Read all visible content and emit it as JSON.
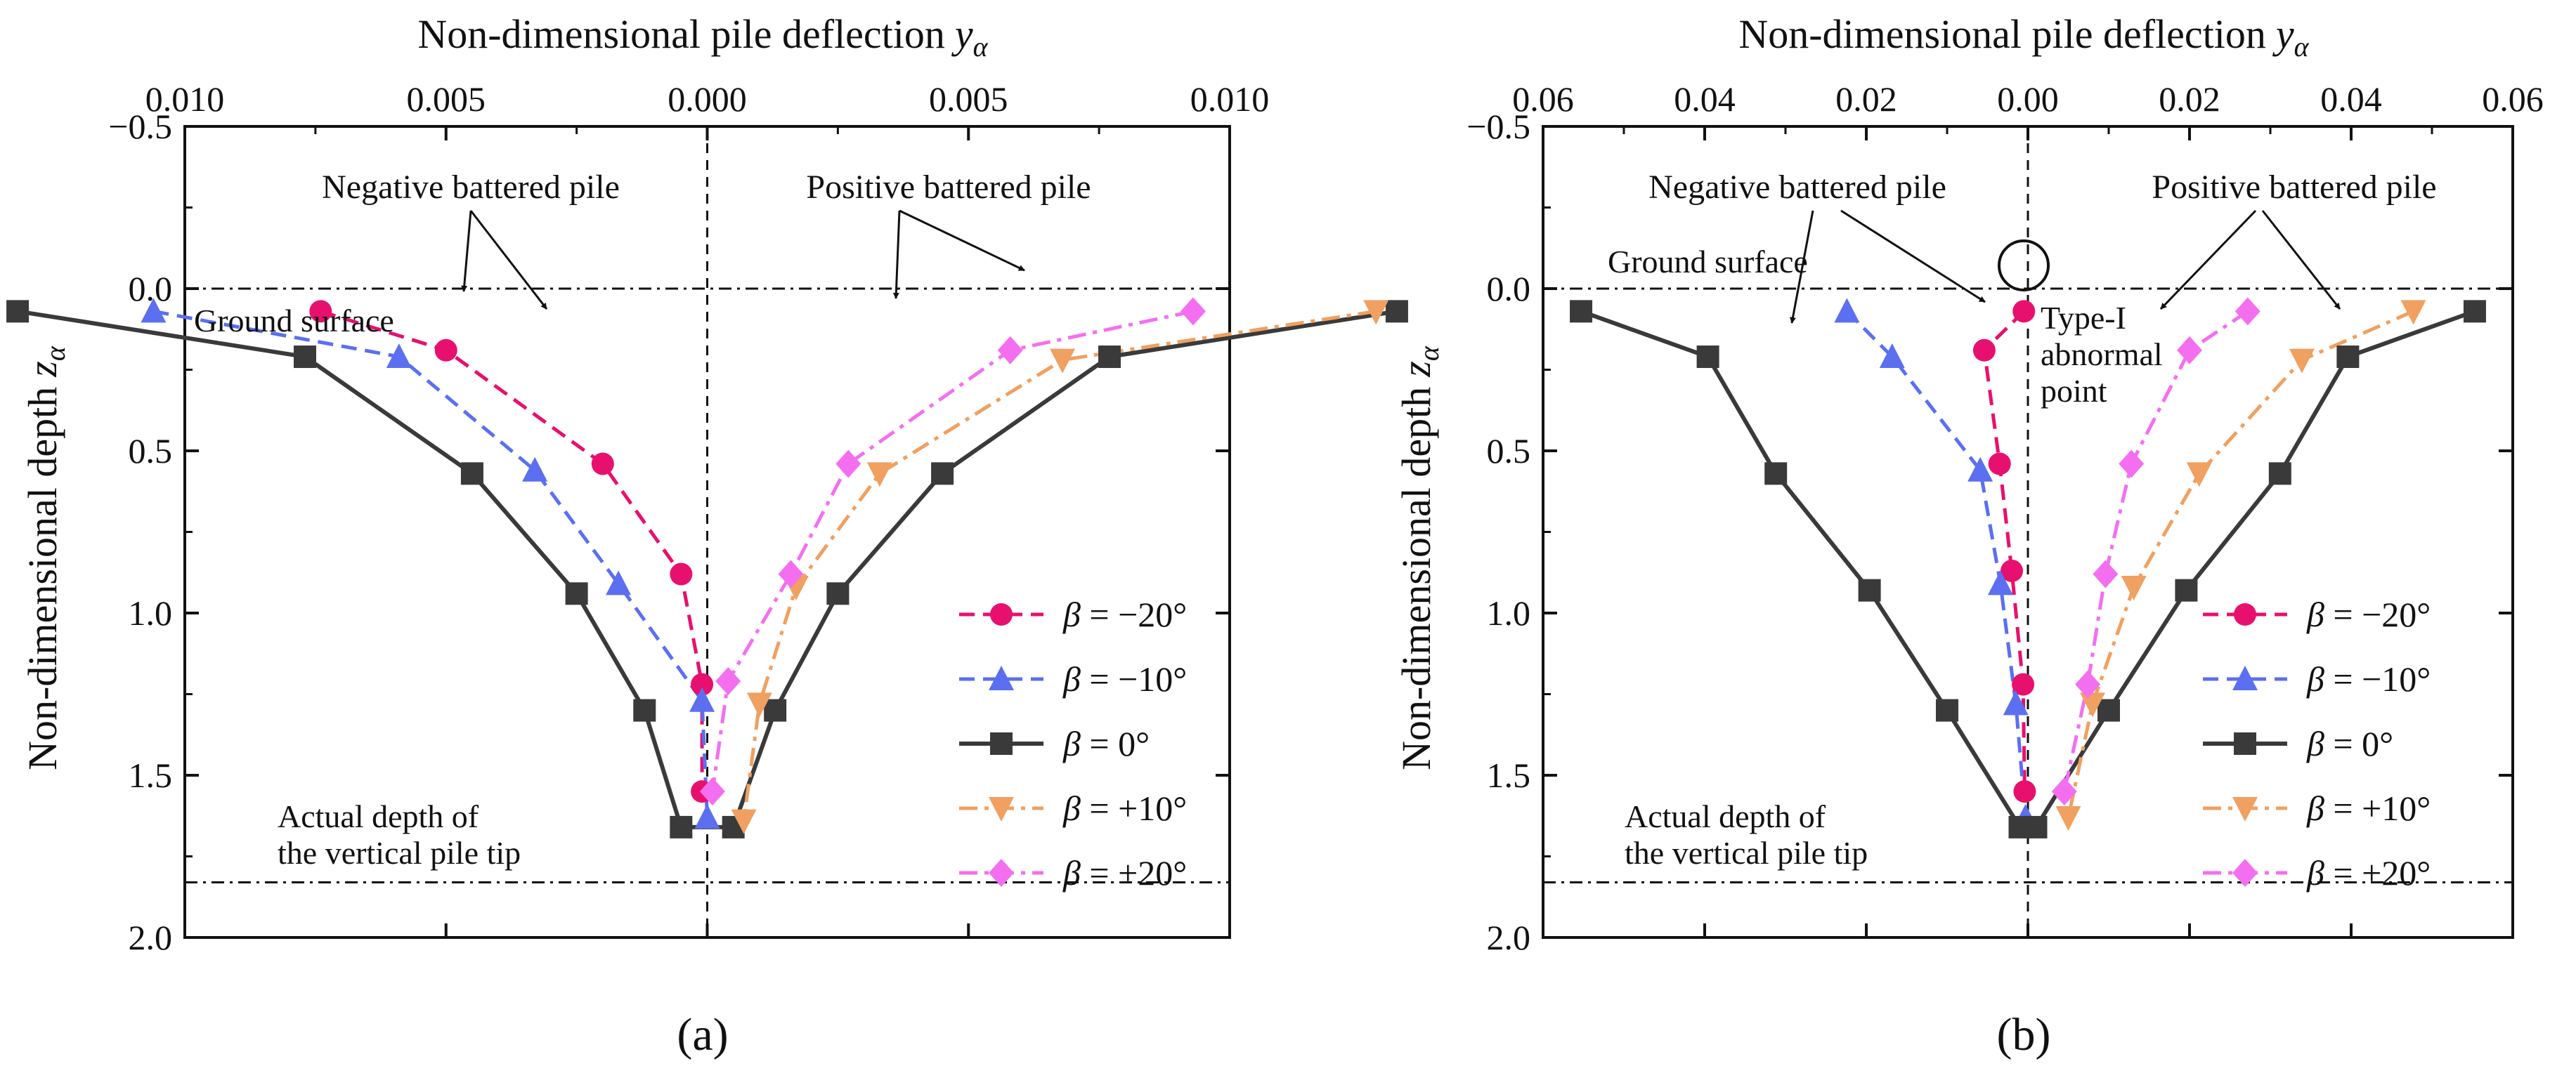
{
  "figure": {
    "panels": [
      {
        "id": "a",
        "caption": "(a)",
        "xlabel_main": "Non-dimensional pile deflection",
        "xlabel_sym": "y",
        "xlabel_sub": "α",
        "ylabel_main": "Non-dimensional depth",
        "ylabel_sym": "z",
        "ylabel_sub": "α",
        "xticks": [
          {
            "value": -0.01,
            "label": "0.010"
          },
          {
            "value": -0.005,
            "label": "0.005"
          },
          {
            "value": 0.0,
            "label": "0.000"
          },
          {
            "value": 0.005,
            "label": "0.005"
          },
          {
            "value": 0.01,
            "label": "0.010"
          }
        ],
        "yticks": [
          {
            "value": -0.5,
            "label": "−0.5"
          },
          {
            "value": 0.0,
            "label": "0.0"
          },
          {
            "value": 0.5,
            "label": "0.5"
          },
          {
            "value": 1.0,
            "label": "1.0"
          },
          {
            "value": 1.5,
            "label": "1.5"
          },
          {
            "value": 2.0,
            "label": "2.0"
          }
        ],
        "annotations": {
          "negative": "Negative battered pile",
          "positive": "Positive battered pile",
          "ground": "Ground surface",
          "tip_line1": "Actual depth of",
          "tip_line2": "the vertical pile tip"
        }
      },
      {
        "id": "b",
        "caption": "(b)",
        "xlabel_main": "Non-dimensional pile deflection",
        "xlabel_sym": "y",
        "xlabel_sub": "α",
        "ylabel_main": "Non-dimensional  depth",
        "ylabel_sym": "z",
        "ylabel_sub": "α",
        "xticks": [
          {
            "value": -0.06,
            "label": "0.06"
          },
          {
            "value": -0.04,
            "label": "0.04"
          },
          {
            "value": -0.02,
            "label": "0.02"
          },
          {
            "value": 0.0,
            "label": "0.00"
          },
          {
            "value": 0.02,
            "label": "0.02"
          },
          {
            "value": 0.04,
            "label": "0.04"
          },
          {
            "value": 0.06,
            "label": "0.06"
          }
        ],
        "yticks": [
          {
            "value": -0.5,
            "label": "−0.5"
          },
          {
            "value": 0.0,
            "label": "0.0"
          },
          {
            "value": 0.5,
            "label": "0.5"
          },
          {
            "value": 1.0,
            "label": "1.0"
          },
          {
            "value": 1.5,
            "label": "1.5"
          },
          {
            "value": 2.0,
            "label": "2.0"
          }
        ],
        "annotations": {
          "negative": "Negative battered pile",
          "positive": "Positive battered pile",
          "ground": "Ground surface",
          "tip_line1": "Actual depth of",
          "tip_line2": "the vertical pile tip",
          "abnormal_line1": "Type-I",
          "abnormal_line2": "abnormal",
          "abnormal_line3": "point"
        }
      }
    ],
    "legend": [
      {
        "beta_label": "β",
        "value_label": " = −20°"
      },
      {
        "beta_label": "β",
        "value_label": " = −10°"
      },
      {
        "beta_label": "β",
        "value_label": " = 0°"
      },
      {
        "beta_label": "β",
        "value_label": " = +10°"
      },
      {
        "beta_label": "β",
        "value_label": " = +20°"
      }
    ]
  },
  "colors": {
    "b_m20": "#e8106e",
    "b_m10": "#5b6ff0",
    "b_0": "#3a3a3a",
    "b_p10": "#f0a060",
    "b_p20": "#f46ff0",
    "axis": "#111111"
  },
  "chart_data": [
    {
      "type": "line",
      "panel": "a",
      "title": "",
      "xlabel": "Non-dimensional pile deflection yα",
      "ylabel": "Non-dimensional depth zα",
      "xlim": [
        -0.01,
        0.01
      ],
      "ylim": [
        -0.5,
        2.0
      ],
      "x_axis_position": "top",
      "y_inverted": true,
      "x_tick_labels_absolute": true,
      "reference_lines": {
        "ground_surface": 0.0,
        "vertical_pile_tip": 1.83,
        "zero_deflection": 0.0
      },
      "series": [
        {
          "name": "β = −20°",
          "marker": "circle",
          "dash": "dash",
          "x": [
            -0.0074,
            -0.005,
            -0.002,
            -0.0005,
            -0.0001,
            -0.0001
          ],
          "y": [
            0.07,
            0.19,
            0.54,
            0.88,
            1.22,
            1.55
          ]
        },
        {
          "name": "β = −10°",
          "marker": "triangle-up",
          "dash": "dash",
          "x": [
            -0.0106,
            -0.0059,
            -0.0033,
            -0.0017,
            -0.0001,
            0.0
          ],
          "y": [
            0.07,
            0.21,
            0.56,
            0.91,
            1.27,
            1.63
          ]
        },
        {
          "name": "β = 0°",
          "marker": "square",
          "dash": "solid",
          "x": [
            -0.0132,
            -0.0077,
            -0.0045,
            -0.0025,
            -0.0012,
            -0.0005,
            0.0005,
            0.0013,
            0.0025,
            0.0045,
            0.0077,
            0.0132
          ],
          "y": [
            0.07,
            0.21,
            0.57,
            0.94,
            1.3,
            1.66,
            1.66,
            1.3,
            0.94,
            0.57,
            0.21,
            0.07
          ]
        },
        {
          "name": "β = +10°",
          "marker": "triangle-down",
          "dash": "dashdot",
          "x": [
            0.0128,
            0.0068,
            0.0033,
            0.0017,
            0.001,
            0.0007
          ],
          "y": [
            0.07,
            0.22,
            0.57,
            0.92,
            1.28,
            1.64
          ]
        },
        {
          "name": "β = +20°",
          "marker": "diamond",
          "dash": "dashdot",
          "x": [
            0.0093,
            0.0058,
            0.0027,
            0.0016,
            0.0004,
            0.0001
          ],
          "y": [
            0.07,
            0.19,
            0.54,
            0.88,
            1.21,
            1.55
          ]
        }
      ]
    },
    {
      "type": "line",
      "panel": "b",
      "title": "",
      "xlabel": "Non-dimensional pile deflection yα",
      "ylabel": "Non-dimensional depth zα",
      "xlim": [
        -0.06,
        0.06
      ],
      "ylim": [
        -0.5,
        2.0
      ],
      "x_axis_position": "top",
      "y_inverted": true,
      "x_tick_labels_absolute": true,
      "reference_lines": {
        "ground_surface": 0.0,
        "vertical_pile_tip": 1.83,
        "zero_deflection": 0.0
      },
      "series": [
        {
          "name": "β = −20°",
          "marker": "circle",
          "dash": "dash",
          "x": [
            -0.0005,
            -0.0054,
            -0.0035,
            -0.002,
            -0.0006,
            -0.0004
          ],
          "y": [
            0.07,
            0.19,
            0.54,
            0.87,
            1.22,
            1.55
          ]
        },
        {
          "name": "β = −10°",
          "marker": "triangle-up",
          "dash": "dash",
          "x": [
            -0.0224,
            -0.0168,
            -0.0059,
            -0.0034,
            -0.0015,
            -0.0003
          ],
          "y": [
            0.07,
            0.21,
            0.56,
            0.91,
            1.28,
            1.63
          ]
        },
        {
          "name": "β = 0°",
          "marker": "square",
          "dash": "solid",
          "x": [
            -0.0553,
            -0.0396,
            -0.0312,
            -0.0196,
            -0.01,
            -0.001,
            0.001,
            0.01,
            0.0196,
            0.0312,
            0.0396,
            0.0553
          ],
          "y": [
            0.07,
            0.21,
            0.57,
            0.93,
            1.3,
            1.66,
            1.66,
            1.3,
            0.93,
            0.57,
            0.21,
            0.07
          ]
        },
        {
          "name": "β = +10°",
          "marker": "triangle-down",
          "dash": "dashdot",
          "x": [
            0.0477,
            0.0339,
            0.0212,
            0.0131,
            0.008,
            0.005
          ],
          "y": [
            0.07,
            0.22,
            0.57,
            0.92,
            1.28,
            1.63
          ]
        },
        {
          "name": "β = +20°",
          "marker": "diamond",
          "dash": "dashdot",
          "x": [
            0.0272,
            0.02,
            0.0128,
            0.0096,
            0.0074,
            0.0045
          ],
          "y": [
            0.07,
            0.19,
            0.54,
            0.88,
            1.22,
            1.55
          ]
        }
      ]
    }
  ]
}
